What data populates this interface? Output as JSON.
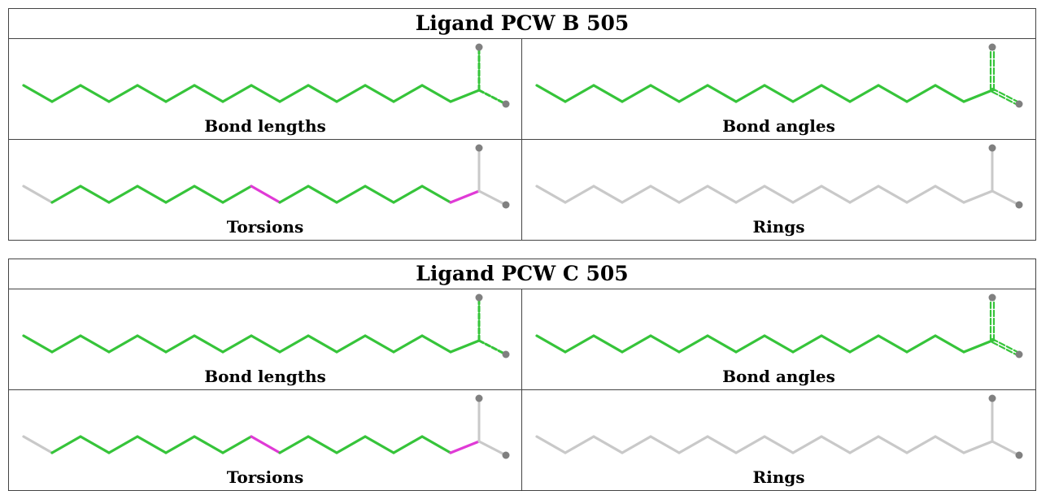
{
  "colors": {
    "green": "#36c43a",
    "magenta": "#e03ad6",
    "grey": "#c9c9c9",
    "atom": "#808080"
  },
  "ligands": [
    {
      "title": "Ligand PCW B 505",
      "panels": [
        {
          "caption": "Bond lengths",
          "style": "green-dashed"
        },
        {
          "caption": "Bond angles",
          "style": "green-doubled"
        },
        {
          "caption": "Torsions",
          "style": "torsions"
        },
        {
          "caption": "Rings",
          "style": "grey"
        }
      ]
    },
    {
      "title": "Ligand PCW C 505",
      "panels": [
        {
          "caption": "Bond lengths",
          "style": "green-dashed"
        },
        {
          "caption": "Bond angles",
          "style": "green-doubled"
        },
        {
          "caption": "Torsions",
          "style": "torsions"
        },
        {
          "caption": "Rings",
          "style": "grey"
        }
      ]
    }
  ]
}
